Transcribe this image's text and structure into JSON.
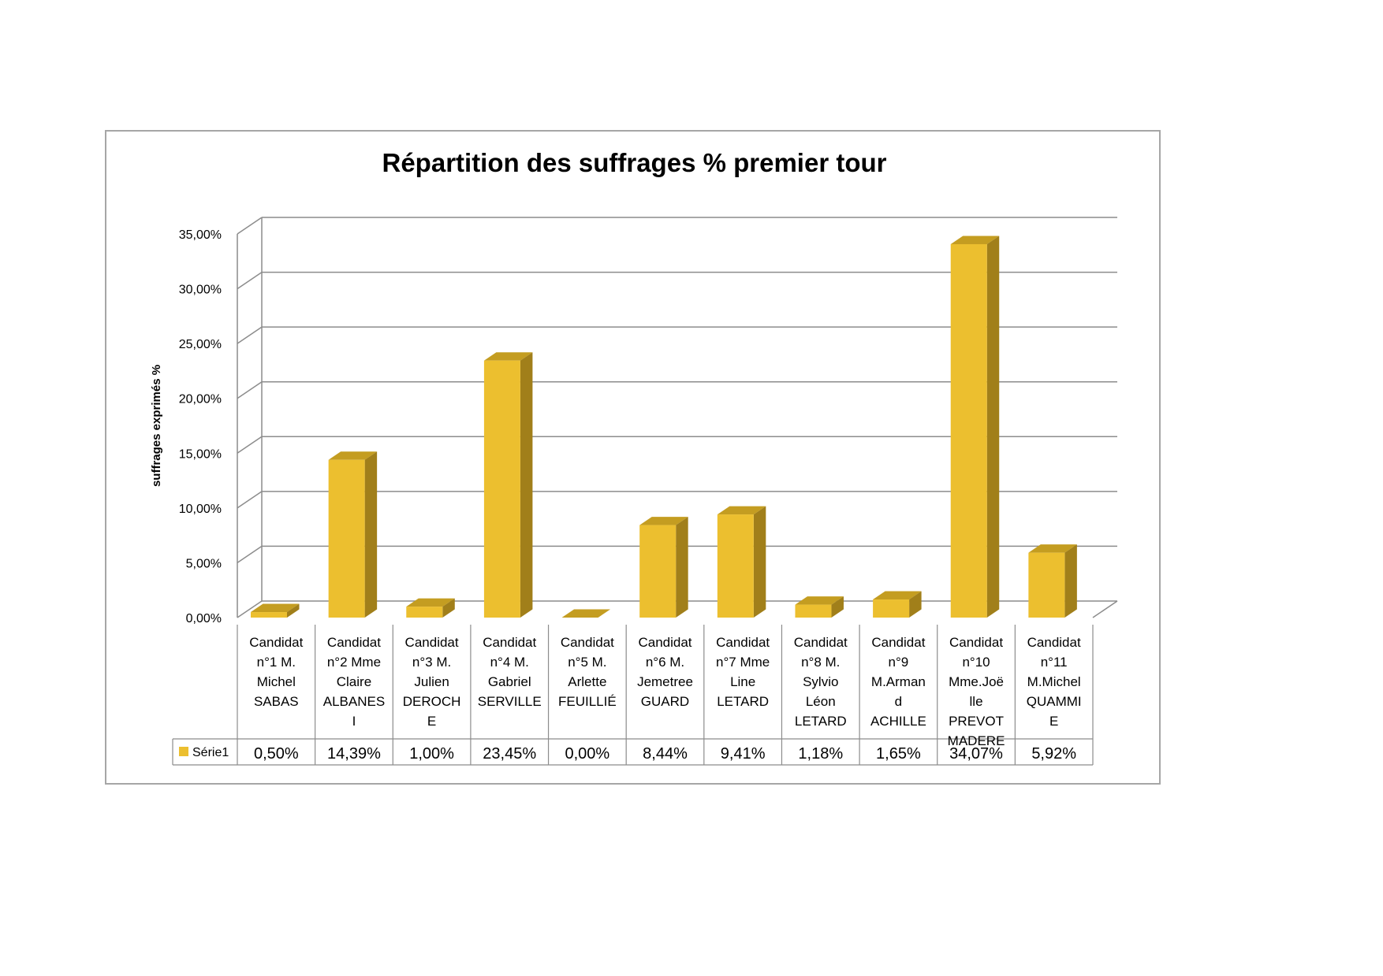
{
  "chart_data": {
    "type": "bar",
    "title": "Répartition des suffrages % premier tour",
    "ylabel": "suffrages exprimés %",
    "xlabel": "",
    "ylim": [
      0,
      35
    ],
    "ytick_step": 5,
    "ytick_labels": [
      "0,00%",
      "5,00%",
      "10,00%",
      "15,00%",
      "20,00%",
      "25,00%",
      "30,00%",
      "35,00%"
    ],
    "grid": true,
    "style": "3d-column",
    "colors": {
      "bar_front": "#ecbf2f",
      "bar_top": "#c49d21",
      "bar_side": "#a17f1a",
      "grid": "#8c8c8c"
    },
    "categories": [
      [
        "Candidat",
        "n°1 M.",
        "Michel",
        "SABAS"
      ],
      [
        "Candidat",
        "n°2 Mme",
        "Claire",
        "ALBANES",
        "I"
      ],
      [
        "Candidat",
        "n°3 M.",
        "Julien",
        "DEROCH",
        "E"
      ],
      [
        "Candidat",
        "n°4 M.",
        "Gabriel",
        "SERVILLE"
      ],
      [
        "Candidat",
        "n°5 M.",
        "Arlette",
        "FEUILLIÉ"
      ],
      [
        "Candidat",
        "n°6 M.",
        "Jemetree",
        "GUARD"
      ],
      [
        "Candidat",
        "n°7 Mme",
        "Line",
        "LETARD"
      ],
      [
        "Candidat",
        "n°8 M.",
        "Sylvio",
        "Léon",
        "LETARD"
      ],
      [
        "Candidat",
        "n°9",
        "M.Arman",
        "d",
        "ACHILLE"
      ],
      [
        "Candidat",
        "n°10",
        "Mme.Joë",
        "lle",
        "PREVOT",
        "MADERE"
      ],
      [
        "Candidat",
        "n°11",
        "M.Michel",
        "QUAMMI",
        "E"
      ]
    ],
    "series": [
      {
        "name": "Série1",
        "values": [
          0.5,
          14.39,
          1.0,
          23.45,
          0.0,
          8.44,
          9.41,
          1.18,
          1.65,
          34.07,
          5.92
        ],
        "value_labels": [
          "0,50%",
          "14,39%",
          "1,00%",
          "23,45%",
          "0,00%",
          "8,44%",
          "9,41%",
          "1,18%",
          "1,65%",
          "34,07%",
          "5,92%"
        ]
      }
    ]
  }
}
